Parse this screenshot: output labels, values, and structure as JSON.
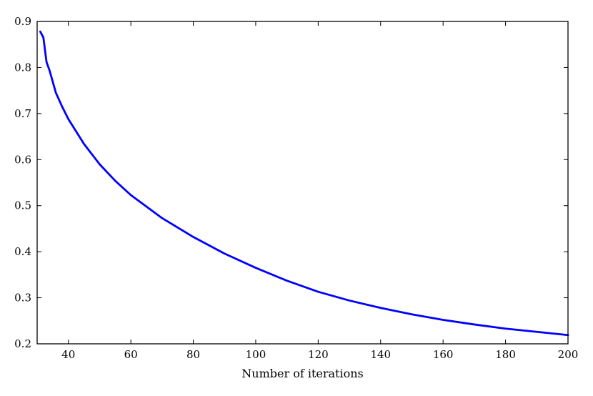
{
  "chart_data": {
    "type": "line",
    "title": "",
    "xlabel": "Number of iterations",
    "ylabel": "",
    "xlim": [
      30,
      200
    ],
    "ylim": [
      0.2,
      0.9
    ],
    "xticks": [
      40,
      60,
      80,
      100,
      120,
      140,
      160,
      180,
      200
    ],
    "yticks": [
      0.2,
      0.3,
      0.4,
      0.5,
      0.6,
      0.7,
      0.8,
      0.9
    ],
    "xtick_labels": [
      "40",
      "60",
      "80",
      "100",
      "120",
      "140",
      "160",
      "180",
      "200"
    ],
    "ytick_labels": [
      "0.2",
      "0.3",
      "0.4",
      "0.5",
      "0.6",
      "0.7",
      "0.8",
      "0.9"
    ],
    "grid": false,
    "legend": "none",
    "series": [
      {
        "color": "#0000ff",
        "x": [
          31,
          32,
          33,
          34,
          36,
          38,
          40,
          45,
          50,
          55,
          60,
          70,
          80,
          90,
          100,
          110,
          120,
          130,
          140,
          150,
          160,
          170,
          180,
          190,
          200
        ],
        "y": [
          0.878,
          0.865,
          0.812,
          0.793,
          0.745,
          0.715,
          0.688,
          0.634,
          0.59,
          0.554,
          0.523,
          0.473,
          0.432,
          0.396,
          0.365,
          0.337,
          0.313,
          0.294,
          0.278,
          0.264,
          0.252,
          0.242,
          0.233,
          0.226,
          0.219
        ]
      }
    ]
  }
}
